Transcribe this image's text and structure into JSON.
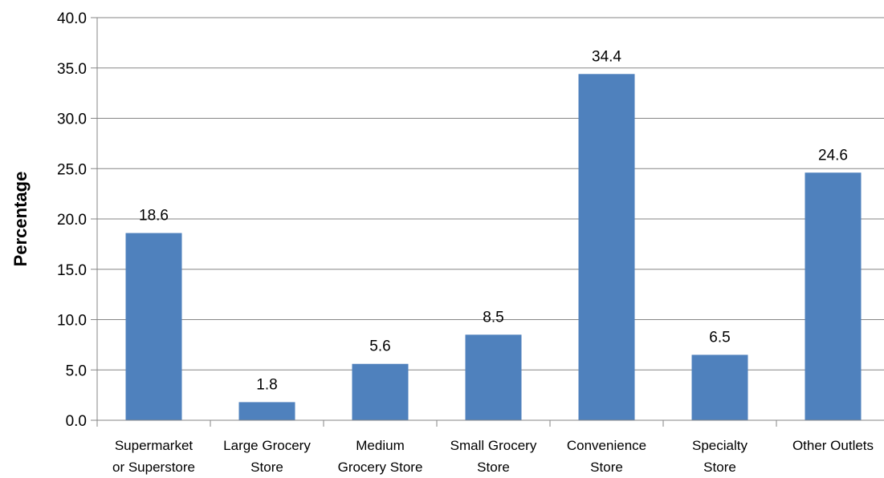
{
  "chart_data": {
    "type": "bar",
    "title": "",
    "xlabel": "",
    "ylabel": "Percentage",
    "ylim": [
      0,
      40
    ],
    "yticks": [
      "0.0",
      "5.0",
      "10.0",
      "15.0",
      "20.0",
      "25.0",
      "30.0",
      "35.0",
      "40.0"
    ],
    "grid": true,
    "legend": "none",
    "categories": [
      [
        "Supermarket",
        "or Superstore"
      ],
      [
        "Large Grocery",
        "Store"
      ],
      [
        "Medium",
        "Grocery Store"
      ],
      [
        "Small Grocery",
        "Store"
      ],
      [
        "Convenience",
        "Store"
      ],
      [
        "Specialty",
        "Store"
      ],
      [
        "Other Outlets"
      ]
    ],
    "values": [
      18.6,
      1.8,
      5.6,
      8.5,
      34.4,
      6.5,
      24.6
    ],
    "data_labels": [
      "18.6",
      "1.8",
      "5.6",
      "8.5",
      "34.4",
      "6.5",
      "24.6"
    ],
    "colors": {
      "bar": "#4F81BD",
      "grid": "#868686",
      "axis": "#868686"
    }
  }
}
